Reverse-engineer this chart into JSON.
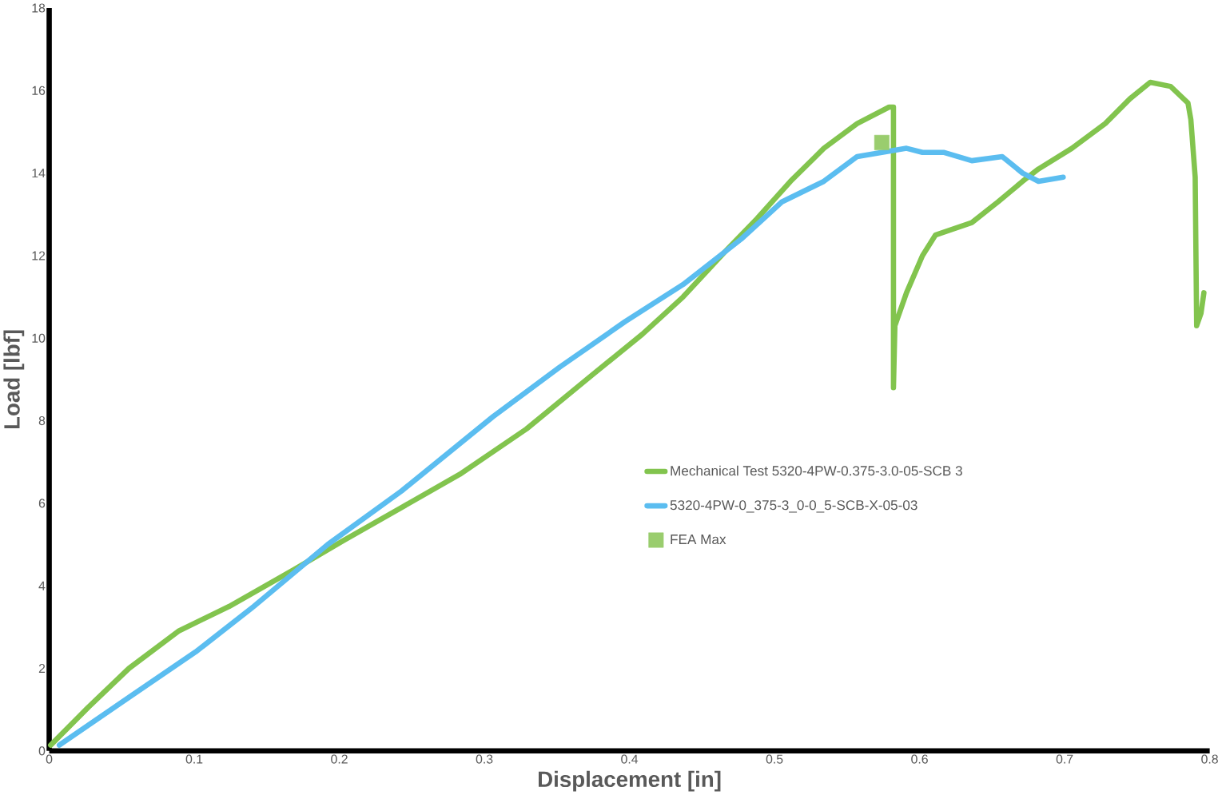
{
  "chart_data": {
    "type": "line",
    "xlabel": "Displacement [in]",
    "ylabel": "Load [lbf]",
    "xlim": [
      0,
      0.8
    ],
    "xticks": [
      0,
      0.1,
      0.2,
      0.3,
      0.4,
      0.5,
      0.6,
      0.7,
      0.8
    ],
    "ylim": [
      0,
      18
    ],
    "yticks": [
      0,
      2,
      4,
      6,
      8,
      10,
      12,
      14,
      16,
      18
    ],
    "grid": false,
    "legend": "right",
    "marker": "none",
    "line_style": "solid",
    "series": [
      {
        "name": "Mechanical Test 5320-4PW-0.375-3.0-05-SCB 3",
        "color": "#82c44e",
        "x": [
          0.001,
          0.027,
          0.055,
          0.089,
          0.124,
          0.169,
          0.203,
          0.243,
          0.283,
          0.329,
          0.374,
          0.409,
          0.437,
          0.466,
          0.488,
          0.511,
          0.534,
          0.557,
          0.579,
          0.582,
          0.582,
          0.583,
          0.591,
          0.602,
          0.611,
          0.636,
          0.654,
          0.671,
          0.682,
          0.705,
          0.728,
          0.745,
          0.759,
          0.773,
          0.785,
          0.787,
          0.79,
          0.791,
          0.794,
          0.796
        ],
        "values": [
          0.14,
          1.06,
          2.0,
          2.9,
          3.5,
          4.4,
          5.1,
          5.9,
          6.7,
          7.8,
          9.1,
          10.1,
          11.0,
          12.1,
          12.9,
          13.8,
          14.6,
          15.2,
          15.6,
          15.6,
          8.8,
          10.3,
          11.1,
          12.0,
          12.5,
          12.8,
          13.3,
          13.8,
          14.1,
          14.6,
          15.2,
          15.8,
          16.2,
          16.1,
          15.7,
          15.3,
          13.9,
          10.3,
          10.6,
          11.1
        ]
      },
      {
        "name": "5320-4PW-0_375-3_0-0_5-SCB-X-05-03",
        "color": "#5bbdf0",
        "x": [
          0.007,
          0.055,
          0.101,
          0.141,
          0.192,
          0.243,
          0.306,
          0.352,
          0.397,
          0.437,
          0.477,
          0.505,
          0.534,
          0.557,
          0.591,
          0.602,
          0.617,
          0.636,
          0.657,
          0.671,
          0.682,
          0.699
        ],
        "values": [
          0.14,
          1.3,
          2.4,
          3.5,
          5.0,
          6.3,
          8.1,
          9.3,
          10.4,
          11.3,
          12.4,
          13.3,
          13.8,
          14.4,
          14.6,
          14.5,
          14.5,
          14.3,
          14.4,
          14.0,
          13.8,
          13.9
        ]
      },
      {
        "name": "FEA Max",
        "type": "scatter",
        "marker": "square",
        "color": "#9acd6e",
        "x": [
          0.574
        ],
        "values": [
          14.74
        ]
      }
    ]
  }
}
